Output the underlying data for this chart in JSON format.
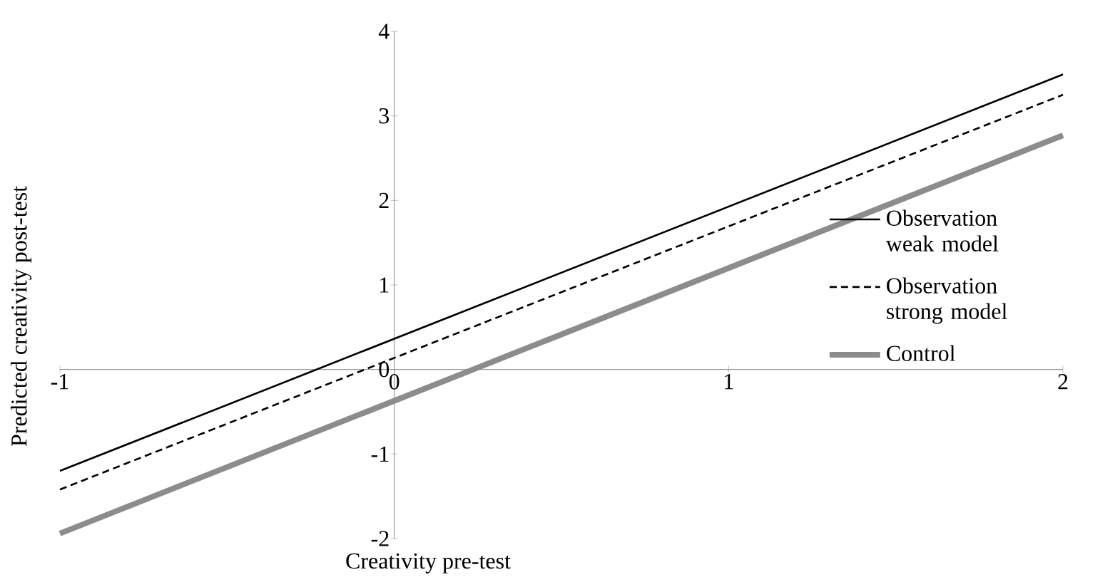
{
  "chart_data": {
    "type": "line",
    "xlabel": "Creativity pre-test",
    "ylabel": "Predicted creativity post-test",
    "x": [
      -1,
      2
    ],
    "series": [
      {
        "name": "Observation weak model",
        "color": "#000000",
        "line_style": "solid",
        "values": [
          -1.2,
          3.49
        ]
      },
      {
        "name": "Observation strong model",
        "color": "#000000",
        "line_style": "dashed",
        "values": [
          -1.42,
          3.25
        ]
      },
      {
        "name": "Control",
        "color": "#8c8c8c",
        "line_style": "solid",
        "values": [
          -1.94,
          2.77
        ]
      }
    ],
    "xlim": [
      -1,
      2
    ],
    "ylim": [
      -2,
      4
    ],
    "xticks": [
      -1,
      0,
      1,
      2
    ],
    "yticks": [
      -2,
      -1,
      0,
      1,
      2,
      3,
      4
    ],
    "grid": false,
    "legend": "right",
    "marker": "none"
  }
}
